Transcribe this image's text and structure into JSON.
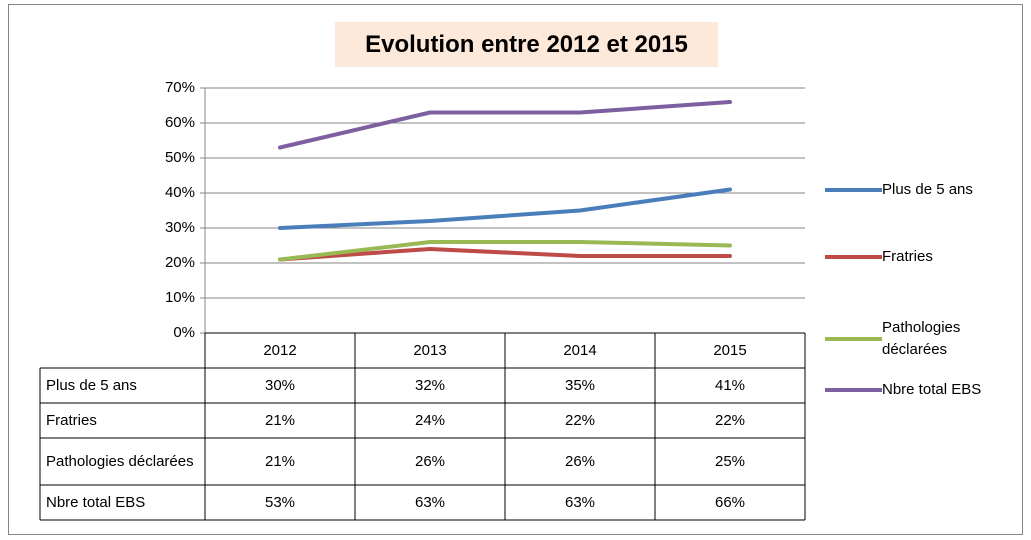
{
  "chart_data": {
    "type": "line",
    "title": "Evolution entre 2012 et 2015",
    "categories": [
      "2012",
      "2013",
      "2014",
      "2015"
    ],
    "series": [
      {
        "name": "Plus de 5 ans",
        "color": "#4a7ebb",
        "values": [
          30,
          32,
          35,
          41
        ],
        "value_labels": [
          "30%",
          "32%",
          "35%",
          "41%"
        ]
      },
      {
        "name": "Fratries",
        "color": "#be4b48",
        "values": [
          21,
          24,
          22,
          22
        ],
        "value_labels": [
          "21%",
          "24%",
          "22%",
          "22%"
        ]
      },
      {
        "name": "Pathologies déclarées",
        "color": "#98b954",
        "values": [
          21,
          26,
          26,
          25
        ],
        "value_labels": [
          "21%",
          "26%",
          "26%",
          "25%"
        ]
      },
      {
        "name": "Nbre total EBS",
        "color": "#7d60a0",
        "values": [
          53,
          63,
          63,
          66
        ],
        "value_labels": [
          "53%",
          "63%",
          "63%",
          "66%"
        ]
      }
    ],
    "ylim": [
      0,
      70
    ],
    "yticks": [
      {
        "value": 0,
        "label": "0%"
      },
      {
        "value": 10,
        "label": "10%"
      },
      {
        "value": 20,
        "label": "20%"
      },
      {
        "value": 30,
        "label": "30%"
      },
      {
        "value": 40,
        "label": "40%"
      },
      {
        "value": 50,
        "label": "50%"
      },
      {
        "value": 60,
        "label": "60%"
      },
      {
        "value": 70,
        "label": "70%"
      }
    ],
    "grid": true,
    "legend": "right"
  }
}
